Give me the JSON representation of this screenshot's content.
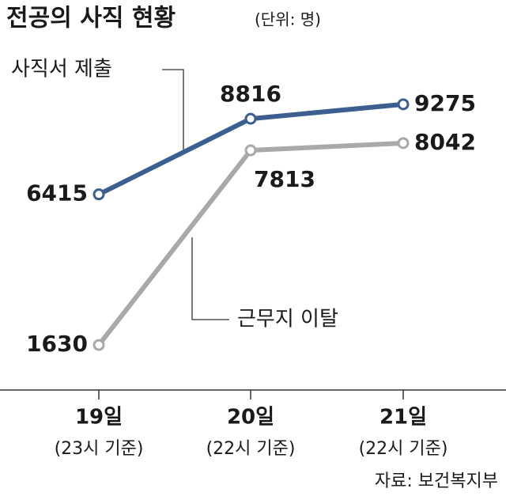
{
  "chart_data": {
    "type": "line",
    "title": "전공의 사직 현황",
    "unit": "(단위: 명)",
    "categories": [
      "19일",
      "20일",
      "21일"
    ],
    "category_notes": [
      "(23시 기준)",
      "(22시 기준)",
      "(22시 기준)"
    ],
    "series": [
      {
        "name": "사직서 제출",
        "color": "#3d5f8f",
        "values": [
          6415,
          8816,
          9275
        ]
      },
      {
        "name": "근무지 이탈",
        "color": "#a9a9a9",
        "values": [
          1630,
          7813,
          8042
        ]
      }
    ],
    "ylim": [
      0,
      10000
    ],
    "source": "자료: 보건복지부"
  }
}
